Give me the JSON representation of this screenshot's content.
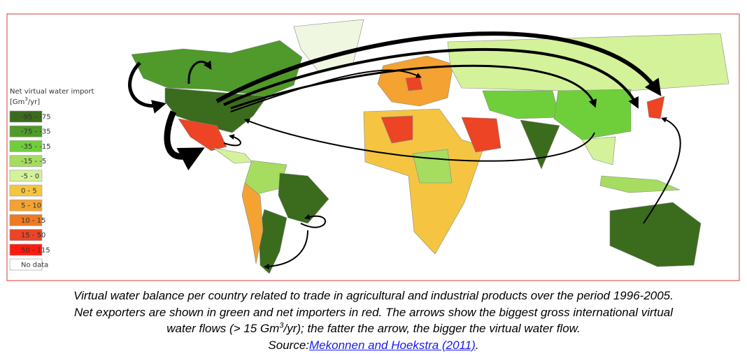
{
  "legend": {
    "title": "Net virtual water import",
    "unit_parts": [
      "[Gm",
      "3",
      "/yr]"
    ],
    "items": [
      {
        "label": "-95 - -75",
        "color": "#3b6b1c"
      },
      {
        "label": "-75 - -35",
        "color": "#4f9a2a"
      },
      {
        "label": "-35 - -15",
        "color": "#6fcf3a"
      },
      {
        "label": "-15 - -5",
        "color": "#a6dc60"
      },
      {
        "label": "-5 - 0",
        "color": "#d4f29a"
      },
      {
        "label": "0 - 5",
        "color": "#f5c542"
      },
      {
        "label": "5 - 10",
        "color": "#f4a232"
      },
      {
        "label": "10 - 15",
        "color": "#ef7a22"
      },
      {
        "label": "15 - 50",
        "color": "#ec4424"
      },
      {
        "label": "50 - 115",
        "color": "#ff1a10"
      },
      {
        "label": "No data",
        "color": "#ffffff"
      }
    ]
  },
  "caption": {
    "line1": "Virtual water balance per country related to trade in agricultural and industrial products over the period 1996-2005.",
    "line2": "Net exporters are shown in green and net importers in red. The arrows show the biggest gross international virtual",
    "line3_parts": [
      "water flows (> 15 Gm",
      "3",
      "/yr); the fatter the arrow, the bigger the virtual water flow."
    ],
    "source_prefix": "Source:",
    "source_link": "Mekonnen and Hoekstra (2011)",
    "source_suffix": "."
  }
}
